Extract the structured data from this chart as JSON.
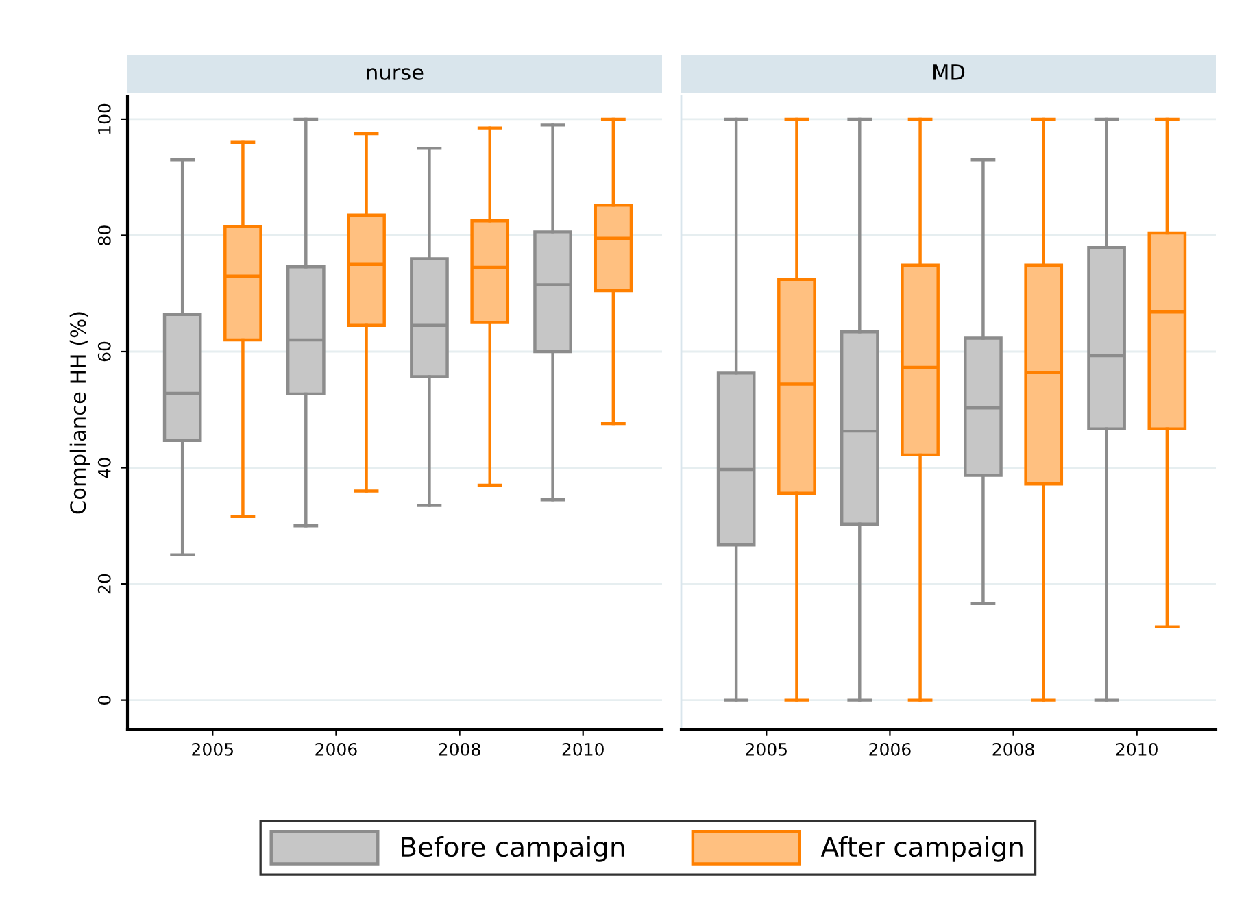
{
  "chart_data": [
    {
      "type": "box",
      "title": "nurse",
      "ylabel": "Compliance HH (%)",
      "categories": [
        "2005",
        "2006",
        "2008",
        "2010"
      ],
      "ylim": [
        -5,
        104
      ],
      "yticks": [
        0,
        20,
        40,
        60,
        80,
        100
      ],
      "grid": "y",
      "legend": "bottom",
      "series": [
        {
          "name": "Before campaign",
          "color": "#8c8c8c",
          "boxes": [
            {
              "low": 25,
              "q1": 44.7,
              "median": 52.8,
              "q3": 66.4,
              "high": 93
            },
            {
              "low": 30,
              "q1": 52.7,
              "median": 62,
              "q3": 74.6,
              "high": 100
            },
            {
              "low": 33.5,
              "q1": 55.7,
              "median": 64.5,
              "q3": 76,
              "high": 95
            },
            {
              "low": 34.5,
              "q1": 60,
              "median": 71.5,
              "q3": 80.6,
              "high": 99
            }
          ]
        },
        {
          "name": "After campaign",
          "color": "#ff8000",
          "boxes": [
            {
              "low": 31.6,
              "q1": 62,
              "median": 73,
              "q3": 81.5,
              "high": 96
            },
            {
              "low": 36,
              "q1": 64.5,
              "median": 75,
              "q3": 83.5,
              "high": 97.5
            },
            {
              "low": 37,
              "q1": 65,
              "median": 74.5,
              "q3": 82.5,
              "high": 98.5
            },
            {
              "low": 47.6,
              "q1": 70.5,
              "median": 79.5,
              "q3": 85.2,
              "high": 100
            }
          ]
        }
      ]
    },
    {
      "type": "box",
      "title": "MD",
      "categories": [
        "2005",
        "2006",
        "2008",
        "2010"
      ],
      "ylim": [
        -5,
        104
      ],
      "yticks": [
        0,
        20,
        40,
        60,
        80,
        100
      ],
      "grid": "y",
      "tick_labels": "x",
      "series": [
        {
          "color": "#8c8c8c",
          "boxes": [
            {
              "low": 0,
              "q1": 26.7,
              "median": 39.7,
              "q3": 56.3,
              "high": 100
            },
            {
              "low": 0,
              "q1": 30.3,
              "median": 46.3,
              "q3": 63.4,
              "high": 100
            },
            {
              "low": 16.6,
              "q1": 38.7,
              "median": 50.3,
              "q3": 62.3,
              "high": 93
            },
            {
              "low": 0,
              "q1": 46.7,
              "median": 59.3,
              "q3": 77.9,
              "high": 100
            }
          ]
        },
        {
          "color": "#ff8000",
          "boxes": [
            {
              "low": 0,
              "q1": 35.6,
              "median": 54.4,
              "q3": 72.4,
              "high": 100
            },
            {
              "low": 0,
              "q1": 42.2,
              "median": 57.3,
              "q3": 74.9,
              "high": 100
            },
            {
              "low": 0,
              "q1": 37.2,
              "median": 56.4,
              "q3": 74.9,
              "high": 100
            },
            {
              "low": 12.6,
              "q1": 46.7,
              "median": 66.8,
              "q3": 80.4,
              "high": 100
            }
          ]
        }
      ]
    }
  ]
}
